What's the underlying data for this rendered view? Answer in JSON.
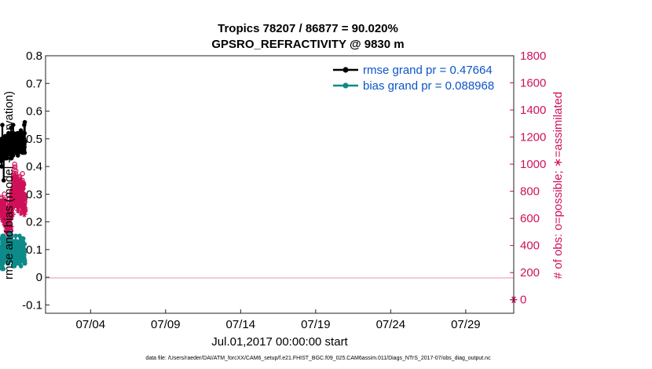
{
  "chart_data": {
    "type": "line",
    "title": "Tropics 78207 / 86877 = 90.020%",
    "subtitle": "GPSRO_REFRACTIVITY @ 9830 m",
    "xlabel": "Jul.01,2017 00:00:00 start",
    "ylabel": "rmse and bias (model - observation)",
    "y2label": "# of obs: o=possible; ∗=assimilated",
    "footer": "data file: /Users/raeder/DAI/ATM_forcXX/CAM6_setup/f.e21.FHIST_BGC.f09_025.CAM6assim.011/Diags_NTrS_2017-07/obs_diag_output.nc",
    "xlim": [
      1,
      32.2
    ],
    "ylim": [
      -0.13,
      0.8
    ],
    "y2lim": [
      -100,
      1800
    ],
    "x_ticks": [
      4,
      9,
      14,
      19,
      24,
      29
    ],
    "x_tick_labels": [
      "07/04",
      "07/09",
      "07/14",
      "07/19",
      "07/24",
      "07/29"
    ],
    "y_ticks": [
      "-0.1",
      "0",
      "0.1",
      "0.2",
      "0.3",
      "0.4",
      "0.5",
      "0.6",
      "0.7",
      "0.8"
    ],
    "y2_ticks": [
      "0",
      "200",
      "400",
      "600",
      "800",
      "1000",
      "1200",
      "1400",
      "1600",
      "1800"
    ],
    "legend": {
      "rmse_label": "rmse grand pr = 0.47664",
      "bias_label": "bias grand pr = 0.088968",
      "location": "top-right"
    },
    "colors": {
      "rmse": "#000000",
      "bias": "#0e8a8a",
      "obs": "#d0105a",
      "zero_line": "#f0a8c0",
      "legend_text": "#0b55c8"
    },
    "series": [
      {
        "name": "rmse",
        "axis": "left",
        "values": [
          0.49,
          0.42,
          0.45,
          0.46,
          0.43,
          0.47,
          0.48,
          0.4,
          0.5,
          0.46,
          0.46,
          0.44,
          0.49,
          0.43,
          0.55,
          0.49,
          0.48,
          0.46,
          0.46,
          0.5,
          0.45,
          0.45,
          0.45,
          0.45,
          0.47,
          0.5,
          0.35,
          0.46,
          0.46,
          0.49,
          0.45,
          0.44,
          0.43,
          0.43,
          0.48,
          0.47,
          0.43,
          0.45,
          0.44,
          0.45,
          0.46,
          0.51,
          0.46,
          0.43,
          0.44,
          0.45,
          0.43,
          0.44,
          0.43,
          0.46,
          0.44,
          0.44,
          0.44,
          0.48,
          0.44,
          0.43,
          0.46,
          0.49,
          0.45,
          0.47,
          0.49,
          0.45,
          0.48,
          0.5,
          0.46,
          0.49,
          0.45,
          0.5,
          0.47,
          0.46,
          0.48,
          0.52,
          0.52,
          0.47,
          0.49,
          0.45,
          0.46,
          0.45,
          0.51,
          0.47,
          0.48,
          0.49,
          0.45,
          0.5,
          0.45,
          0.49,
          0.49,
          0.47,
          0.46,
          0.43,
          0.43,
          0.44,
          0.45,
          0.54,
          0.48,
          0.46,
          0.43,
          0.49,
          0.48,
          0.52,
          0.46,
          0.46,
          0.45,
          0.49,
          0.5,
          0.52,
          0.5,
          0.47,
          0.49,
          0.49,
          0.44,
          0.55,
          0.49,
          0.51,
          0.49,
          0.49,
          0.52,
          0.48,
          0.49,
          0.5,
          0.49,
          0.5,
          0.49,
          0.5,
          0.48,
          0.46,
          0.49,
          0.5,
          0.45,
          0.49,
          0.49,
          0.48,
          0.49,
          0.5,
          0.51,
          0.5,
          0.48,
          0.5,
          0.48,
          0.49,
          0.49,
          0.49,
          0.45,
          0.47,
          0.48,
          0.46,
          0.5,
          0.47,
          0.52,
          0.46,
          0.45,
          0.48,
          0.51,
          0.44,
          0.48,
          0.46,
          0.5,
          0.52,
          0.45,
          0.47,
          0.5,
          0.48,
          0.49,
          0.49,
          0.48,
          0.52,
          0.46,
          0.48,
          0.46,
          0.5,
          0.5,
          0.51,
          0.48,
          0.5,
          0.49,
          0.5,
          0.49,
          0.48,
          0.46,
          0.49,
          0.53,
          0.49,
          0.48,
          0.48,
          0.46,
          0.48,
          0.49,
          0.48,
          0.48,
          0.5,
          0.46,
          0.48,
          0.47,
          0.45,
          0.47,
          0.48,
          0.5,
          0.48,
          0.51,
          0.52,
          0.45,
          0.5,
          0.49,
          0.47,
          0.46,
          0.52,
          0.47,
          0.49,
          0.5,
          0.46,
          0.55,
          0.48,
          0.47,
          0.52,
          0.45,
          0.56,
          0.49,
          0.49
        ]
      },
      {
        "name": "bias",
        "axis": "left",
        "values": [
          0.05,
          0.09,
          0.1,
          0.14,
          0.09,
          0.06,
          0.04,
          0.09,
          0.11,
          0.07,
          0.11,
          0.06,
          0.06,
          0.03,
          0.1,
          0.06,
          0.08,
          0.15,
          0.12,
          0.07,
          0.07,
          0.05,
          0.03,
          0.06,
          0.09,
          0.06,
          0.03,
          0.07,
          0.12,
          0.15,
          0.11,
          0.07,
          0.11,
          0.14,
          0.11,
          0.08,
          0.13,
          0.13,
          0.11,
          0.11,
          0.14,
          0.1,
          0.08,
          0.06,
          0.06,
          0.1,
          0.12,
          0.11,
          0.09,
          0.14,
          0.1,
          0.08,
          0.09,
          0.11,
          0.13,
          0.11,
          0.07,
          0.11,
          0.07,
          0.1,
          0.07,
          0.09,
          0.11,
          0.13,
          0.08,
          0.05,
          0.11,
          0.09,
          0.06,
          0.08,
          0.11,
          0.1,
          0.06,
          0.05,
          0.09,
          0.13,
          0.07,
          0.08,
          0.12,
          0.11,
          0.12,
          0.07,
          0.08,
          0.08,
          0.12,
          0.11,
          0.16,
          0.12,
          0.07,
          0.1,
          0.14,
          0.16,
          0.07,
          0.08,
          0.1,
          0.09,
          0.14,
          0.15,
          0.13,
          0.1,
          0.06,
          0.08,
          0.15,
          0.12,
          0.07,
          0.11,
          0.11,
          0.12,
          0.12,
          0.12,
          0.09,
          0.1,
          0.11,
          0.12,
          0.09,
          0.1,
          0.04,
          0.1,
          0.13,
          0.09,
          0.12,
          0.08,
          0.1,
          0.11,
          0.07,
          0.13,
          0.08,
          0.09,
          0.1,
          0.1,
          0.12,
          0.07,
          0.04,
          0.11,
          0.12,
          0.1,
          0.09,
          0.12,
          0.08,
          0.1,
          0.1,
          0.12,
          0.13,
          0.15,
          0.12,
          0.1,
          0.05,
          0.1,
          0.07,
          0.12,
          0.06,
          0.1,
          0.13,
          0.08,
          0.06,
          0.07,
          0.1,
          0.08,
          0.11,
          0.12,
          0.1,
          0.05,
          0.09,
          0.12,
          0.1,
          0.11,
          0.08,
          0.1,
          0.07,
          0.12,
          0.1,
          0.09,
          0.06,
          0.12,
          0.08,
          0.05,
          0.1,
          0.12,
          0.08,
          0.11,
          0.15,
          0.09,
          0.08,
          0.07,
          0.12,
          0.08,
          0.1,
          0.1,
          0.06,
          0.07,
          0.08,
          0.12,
          0.1,
          0.07,
          0.04,
          0.12,
          0.14,
          0.09,
          0.06,
          0.08,
          0.12,
          0.09,
          0.14,
          0.11,
          0.07,
          0.1,
          0.08,
          0.12,
          0.06,
          0.12,
          0.14,
          0.07,
          0.06,
          0.13,
          0.12,
          0.07,
          0.11,
          0.14,
          0.09,
          0.1,
          0.06,
          0.07,
          0.12,
          0.08,
          0.06,
          0.08,
          0.07,
          0.1,
          0.05,
          0.12,
          0.09,
          0.06,
          0.06,
          0.05
        ]
      },
      {
        "name": "possible",
        "axis": "right",
        "marker": "o",
        "values": [
          730,
          755,
          710,
          745,
          730,
          700,
          680,
          720,
          700,
          720,
          690,
          670,
          720,
          710,
          690,
          690,
          720,
          720,
          690,
          720,
          700,
          720,
          720,
          705,
          700,
          730,
          725,
          700,
          690,
          710,
          730,
          690,
          720,
          740,
          780,
          660,
          640,
          640,
          660,
          620,
          660,
          640,
          650,
          630,
          640,
          660,
          630,
          610,
          620,
          640,
          610,
          610,
          620,
          560,
          620,
          570,
          650,
          630,
          620,
          600,
          630,
          660,
          610,
          590,
          570,
          540,
          560,
          620,
          570,
          580,
          510,
          560,
          540,
          680,
          620,
          660,
          690,
          700,
          720,
          740,
          680,
          720,
          690,
          590,
          660,
          610,
          510,
          540,
          510,
          600,
          450,
          420,
          420,
          480,
          480,
          510,
          600,
          700,
          720,
          770,
          790,
          760,
          740,
          760,
          750,
          800,
          780,
          740,
          700,
          770,
          750,
          750,
          770,
          700,
          820,
          810,
          830,
          880,
          890,
          920,
          860,
          880,
          780,
          860,
          800,
          790,
          870,
          960,
          920,
          900,
          1000,
          980,
          910,
          980,
          790,
          880,
          790,
          800,
          860,
          830,
          930,
          910,
          950,
          900,
          880,
          800,
          790,
          860,
          810,
          830,
          880,
          810,
          820,
          780,
          850,
          790,
          790,
          880,
          830,
          730,
          820,
          760,
          870,
          800,
          790,
          810,
          860,
          880,
          830,
          890,
          800,
          830,
          820,
          900,
          830,
          830,
          770,
          860,
          870,
          910,
          840,
          880,
          830,
          820,
          800,
          830,
          810,
          790,
          720,
          830,
          820,
          830,
          800,
          840,
          870,
          820,
          760,
          850,
          780,
          790,
          810,
          840,
          880,
          930,
          760,
          820,
          850,
          780,
          840,
          820,
          860,
          780,
          860,
          850,
          760,
          850,
          780,
          740,
          720,
          740,
          720,
          700,
          740,
          720,
          750,
          720,
          740,
          750
        ]
      },
      {
        "name": "assimilated",
        "axis": "right",
        "marker": "*",
        "values": [
          660,
          675,
          670,
          680,
          660,
          640,
          650,
          620,
          660,
          640,
          620,
          610,
          620,
          590,
          640,
          630,
          610,
          660,
          650,
          630,
          650,
          660,
          640,
          640,
          640,
          660,
          650,
          640,
          630,
          650,
          640,
          630,
          640,
          650,
          670,
          590,
          570,
          560,
          600,
          550,
          600,
          580,
          580,
          550,
          560,
          590,
          570,
          560,
          550,
          580,
          560,
          550,
          560,
          510,
          560,
          520,
          580,
          560,
          560,
          540,
          560,
          590,
          550,
          540,
          520,
          490,
          500,
          560,
          520,
          530,
          460,
          520,
          490,
          610,
          560,
          590,
          620,
          640,
          650,
          670,
          600,
          650,
          620,
          530,
          590,
          550,
          460,
          480,
          450,
          530,
          410,
          380,
          380,
          420,
          430,
          460,
          540,
          640,
          660,
          690,
          710,
          680,
          670,
          690,
          670,
          720,
          690,
          670,
          630,
          690,
          680,
          690,
          710,
          630,
          740,
          720,
          760,
          800,
          810,
          820,
          770,
          790,
          700,
          780,
          720,
          710,
          780,
          870,
          830,
          810,
          900,
          880,
          820,
          880,
          700,
          780,
          710,
          720,
          780,
          740,
          830,
          820,
          860,
          810,
          790,
          720,
          710,
          780,
          730,
          740,
          790,
          730,
          740,
          700,
          760,
          710,
          700,
          790,
          740,
          660,
          730,
          680,
          780,
          720,
          710,
          730,
          780,
          780,
          740,
          800,
          720,
          740,
          730,
          810,
          740,
          740,
          690,
          770,
          780,
          810,
          760,
          790,
          740,
          730,
          710,
          740,
          730,
          710,
          640,
          740,
          730,
          740,
          720,
          760,
          790,
          740,
          680,
          770,
          700,
          710,
          730,
          760,
          790,
          850,
          690,
          740,
          770,
          700,
          760,
          740,
          770,
          700,
          770,
          760,
          690,
          770,
          700,
          670,
          650,
          660,
          650,
          630,
          660,
          650,
          680,
          650,
          660,
          670
        ]
      },
      {
        "name": "possible_outside",
        "axis": "right",
        "marker": "*",
        "x": [
          32.2
        ],
        "values": [
          0
        ]
      }
    ]
  }
}
